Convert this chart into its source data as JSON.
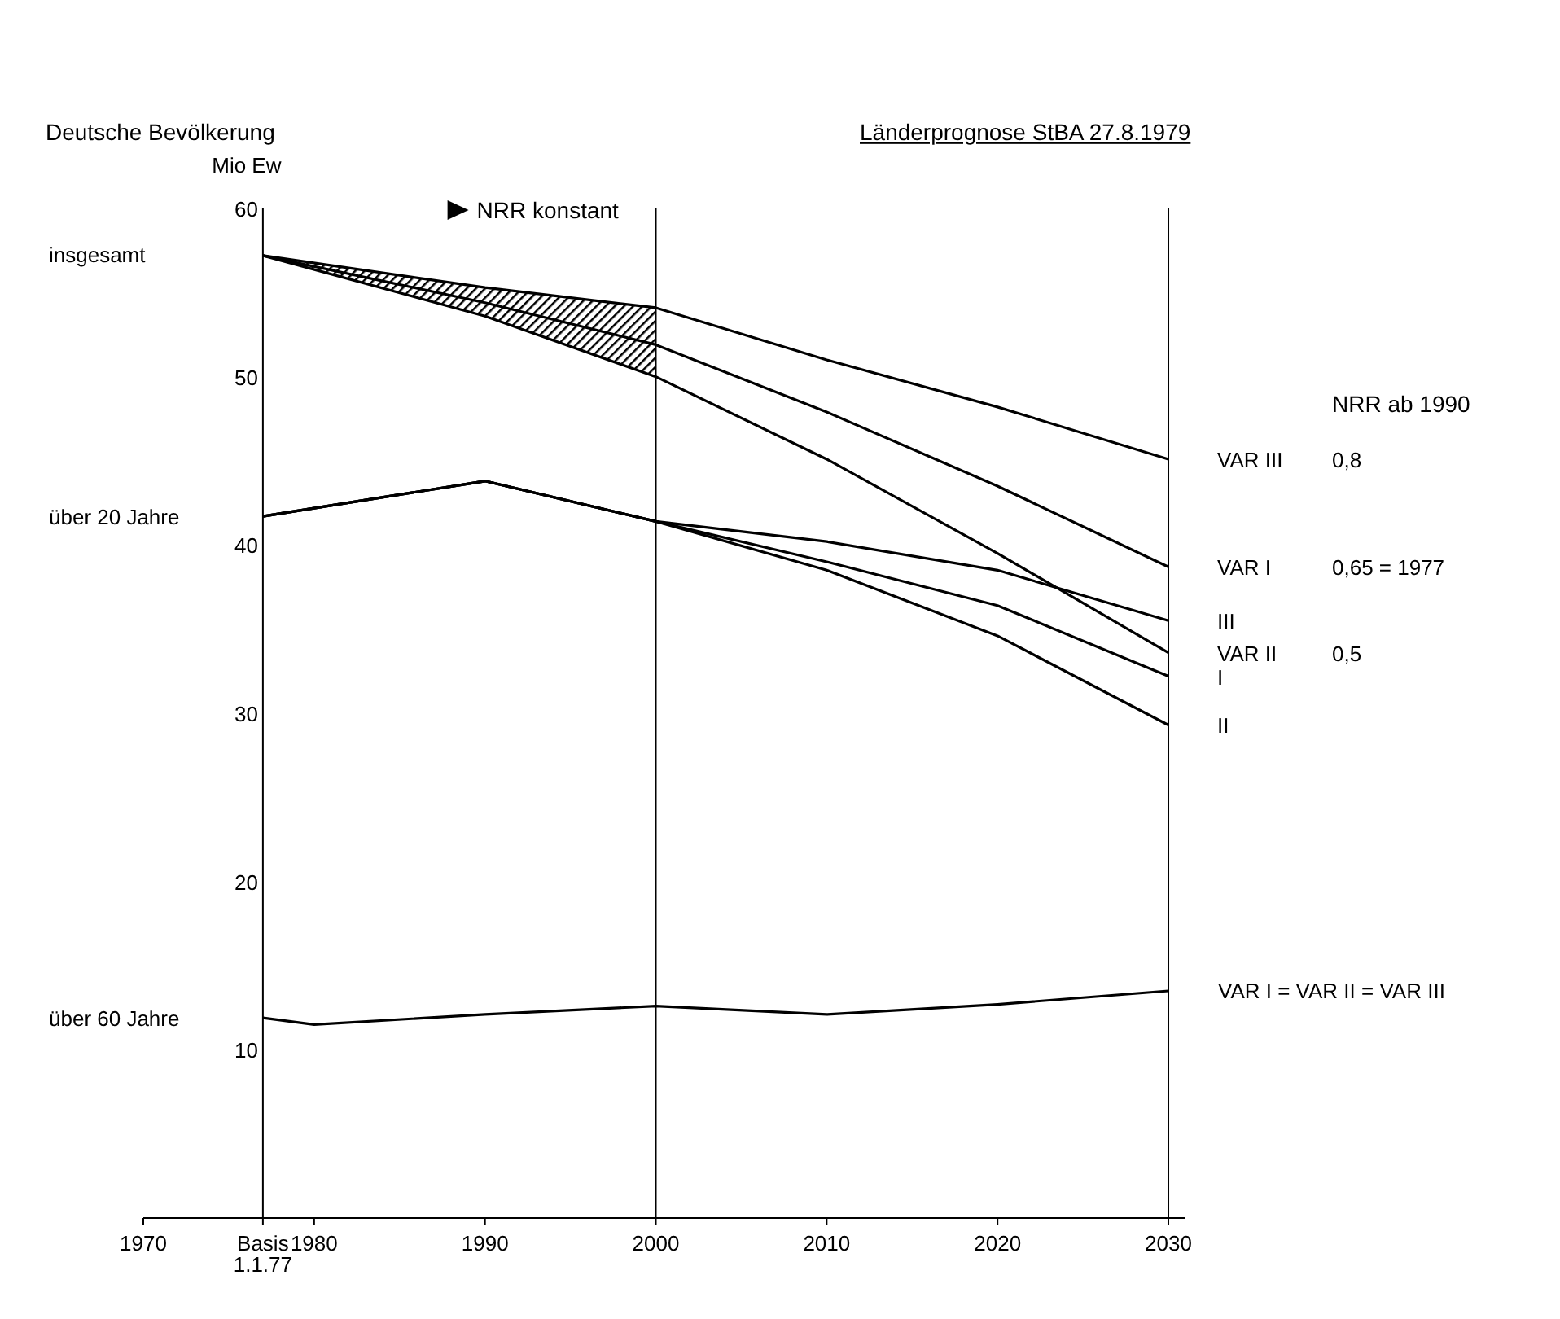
{
  "chart_data": {
    "type": "line",
    "title": "Deutsche Bevölkerung",
    "subtitle": "Länderprognose StBA 27.8.1979",
    "ylabel": "Mio Ew",
    "xlim": [
      1970,
      2031
    ],
    "xticks": [
      1970,
      {
        "value": 1977,
        "label": "Basis 1.1.77"
      },
      1980,
      1990,
      2000,
      2010,
      2020,
      2030
    ],
    "ylim": [
      0,
      60
    ],
    "yticks": [
      10,
      20,
      30,
      40,
      50,
      60
    ],
    "grid": false,
    "legend": false,
    "marker": "none",
    "line_style": "solid",
    "ref_lines": [
      {
        "axis": "x",
        "value": 1977,
        "color": "#000000"
      },
      {
        "axis": "x",
        "value": 2000,
        "color": "#000000"
      },
      {
        "axis": "x",
        "value": 2030,
        "color": "#000000"
      }
    ],
    "series": [
      {
        "name": "VAR III",
        "color": "#000000",
        "x": [
          1977,
          1990,
          2000,
          2010,
          2020,
          2030
        ],
        "values": [
          57.2,
          55.3,
          54.1,
          51.0,
          48.2,
          45.1
        ]
      },
      {
        "name": "VAR I",
        "color": "#000000",
        "x": [
          1977,
          1990,
          2000,
          2010,
          2020,
          2030
        ],
        "values": [
          57.2,
          54.4,
          51.9,
          47.9,
          43.5,
          38.7
        ],
        "lower": [
          57.2,
          53.6,
          50.0,
          null,
          null,
          null
        ],
        "upper": [
          57.2,
          55.3,
          54.1,
          null,
          null,
          null
        ]
      },
      {
        "name": "VAR II",
        "color": "#000000",
        "x": [
          1977,
          1990,
          2000,
          2010,
          2020,
          2030
        ],
        "values": [
          57.2,
          53.6,
          50.0,
          45.1,
          39.5,
          33.6
        ]
      },
      {
        "name": "III",
        "color": "#000000",
        "x": [
          1977,
          1990,
          2000,
          2010,
          2020,
          2030
        ],
        "values": [
          41.7,
          43.8,
          41.4,
          40.2,
          38.5,
          35.5
        ]
      },
      {
        "name": "I",
        "color": "#000000",
        "x": [
          1977,
          1990,
          2000,
          2010,
          2020,
          2030
        ],
        "values": [
          41.7,
          43.8,
          41.4,
          39.0,
          36.4,
          32.2
        ]
      },
      {
        "name": "II",
        "color": "#000000",
        "x": [
          1977,
          1990,
          2000,
          2010,
          2020,
          2030
        ],
        "values": [
          41.7,
          43.8,
          41.4,
          38.5,
          34.6,
          29.3
        ]
      },
      {
        "color": "#000000",
        "x": [
          1977,
          1980,
          1990,
          2000,
          2010,
          2020,
          2030
        ],
        "values": [
          11.9,
          11.5,
          12.1,
          12.6,
          12.1,
          12.7,
          13.5
        ]
      }
    ],
    "annotations": [
      "NRR konstant",
      "NRR ab 1990",
      "insgesamt",
      "über 20 Jahre",
      "über 60 Jahre",
      "0,8",
      "0,65 = 1977",
      "0,5",
      "VAR I = VAR II = VAR III"
    ]
  }
}
